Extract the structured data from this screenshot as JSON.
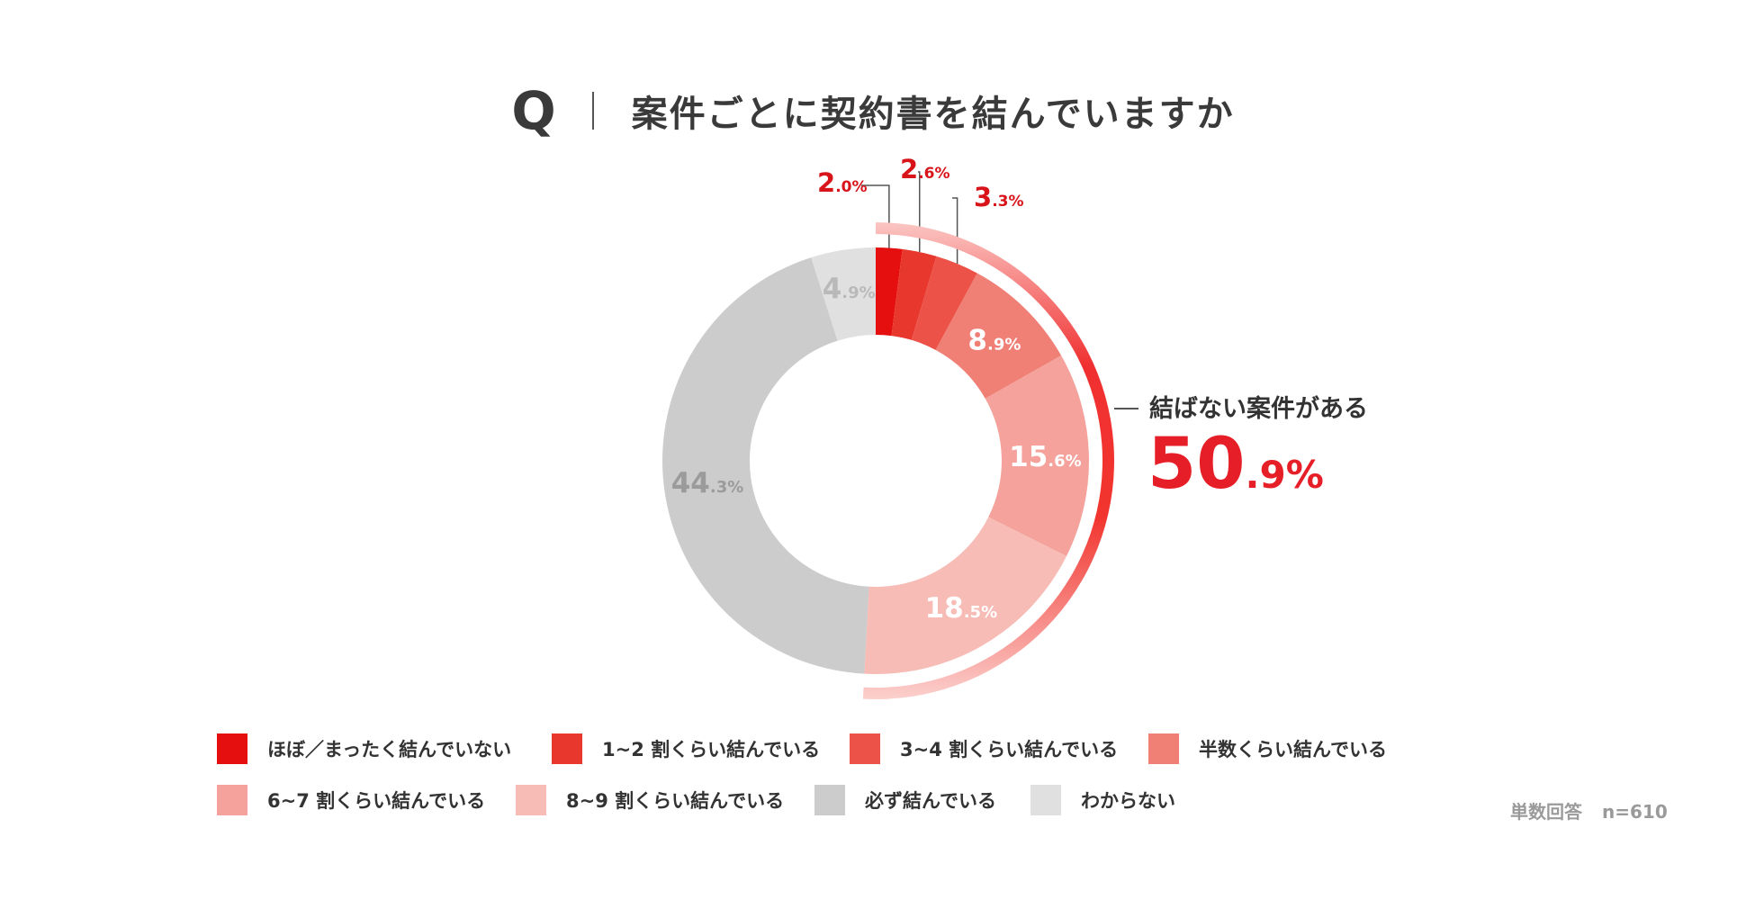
{
  "title": {
    "mark": "Q",
    "text": "案件ごとに契約書を結んでいますか"
  },
  "chart_data": {
    "type": "pie",
    "categories": [
      "ほぼ／まったく結んでいない",
      "1~2 割くらい結んでいる",
      "3~4 割くらい結んでいる",
      "半数くらい結んでいる",
      "6~7 割くらい結んでいる",
      "8~9 割くらい結んでいる",
      "必ず結んでいる",
      "わからない"
    ],
    "values": [
      2.0,
      2.6,
      3.3,
      8.9,
      15.6,
      18.5,
      44.3,
      4.9
    ],
    "labels": [
      {
        "int": "2",
        "dec": ".0%"
      },
      {
        "int": "2",
        "dec": ".6%"
      },
      {
        "int": "3",
        "dec": ".3%"
      },
      {
        "int": "8",
        "dec": ".9%"
      },
      {
        "int": "15",
        "dec": ".6%"
      },
      {
        "int": "18",
        "dec": ".5%"
      },
      {
        "int": "44",
        "dec": ".3%"
      },
      {
        "int": "4",
        "dec": ".9%"
      }
    ],
    "colors": [
      "#e60f0f",
      "#e8382e",
      "#ec5247",
      "#f07f75",
      "#f4a29b",
      "#f7bcb6",
      "#cccccc",
      "#e0e0e0"
    ],
    "label_colors": [
      "#d8141a",
      "#d8141a",
      "#d8141a",
      "#ffffff",
      "#ffffff",
      "#ffffff",
      "#9b9b9b",
      "#b9b9b9"
    ],
    "highlight": {
      "label": "結ばない案件がある",
      "value_int": "50",
      "value_dec": ".9%",
      "color": "#e61e28"
    }
  },
  "footnote": {
    "type": "単数回答",
    "n": "n=610"
  }
}
